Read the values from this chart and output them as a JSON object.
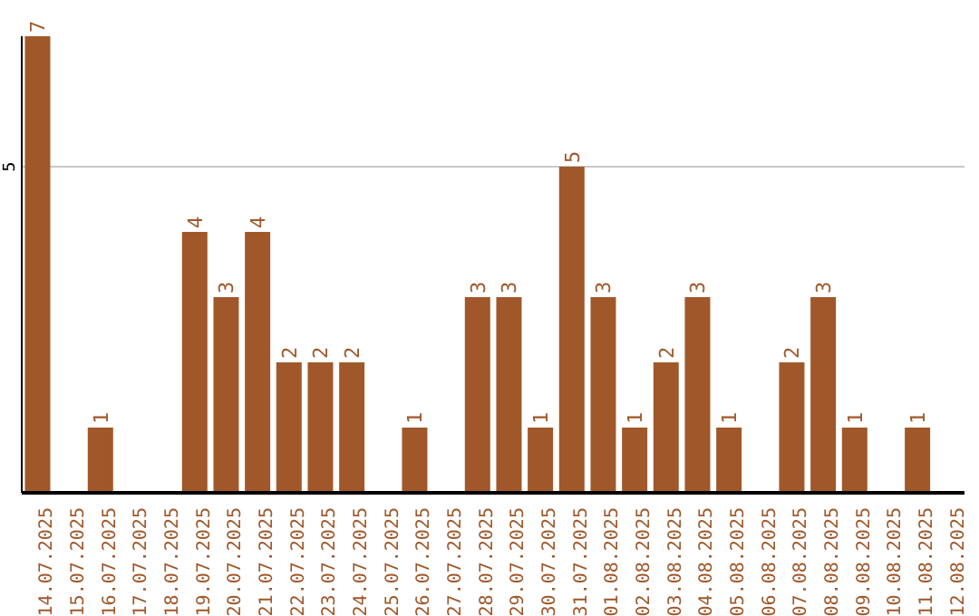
{
  "chart_data": {
    "type": "bar",
    "categories": [
      "14.07.2025",
      "15.07.2025",
      "16.07.2025",
      "17.07.2025",
      "18.07.2025",
      "19.07.2025",
      "20.07.2025",
      "21.07.2025",
      "22.07.2025",
      "23.07.2025",
      "24.07.2025",
      "25.07.2025",
      "26.07.2025",
      "27.07.2025",
      "28.07.2025",
      "29.07.2025",
      "30.07.2025",
      "31.07.2025",
      "01.08.2025",
      "02.08.2025",
      "03.08.2025",
      "04.08.2025",
      "05.08.2025",
      "06.08.2025",
      "07.08.2025",
      "08.08.2025",
      "09.08.2025",
      "10.08.2025",
      "11.08.2025",
      "12.08.2025"
    ],
    "values": [
      7,
      0,
      1,
      0,
      0,
      4,
      3,
      4,
      2,
      2,
      2,
      0,
      1,
      0,
      3,
      3,
      1,
      5,
      3,
      1,
      2,
      3,
      1,
      0,
      2,
      3,
      1,
      0,
      1,
      0
    ],
    "value_labels": [
      "7",
      null,
      "1",
      null,
      null,
      "4",
      "3",
      "4",
      "2",
      "2",
      "2",
      null,
      "1",
      null,
      "3",
      "3",
      "1",
      "5",
      "3",
      "1",
      "2",
      "3",
      "1",
      null,
      "2",
      "3",
      "1",
      null,
      "1",
      null
    ],
    "color": "#a0582a",
    "ylim": [
      0,
      7
    ],
    "yticks": [
      5
    ],
    "grid": "y"
  }
}
